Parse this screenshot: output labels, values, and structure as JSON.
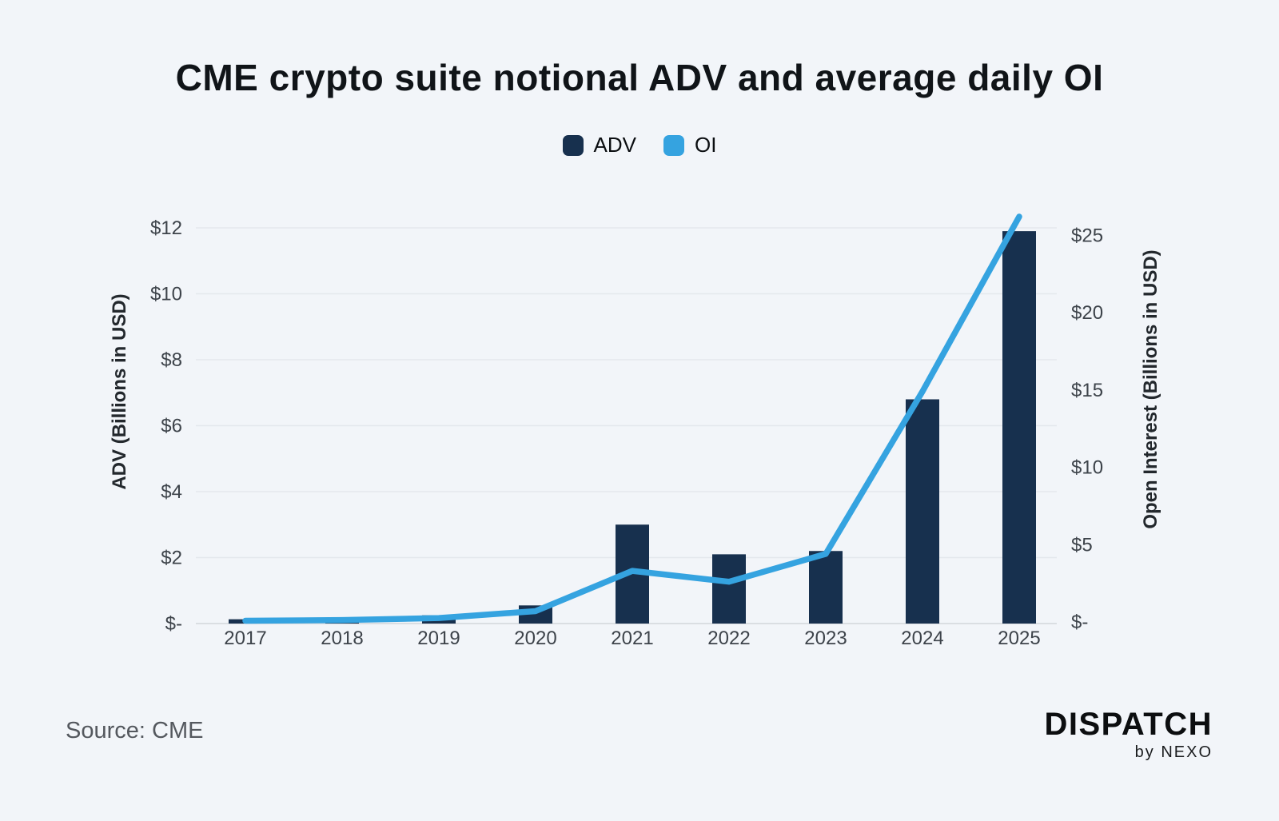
{
  "header": {
    "title": "CME crypto suite notional ADV and average daily OI"
  },
  "legend": {
    "items": [
      {
        "label": "ADV",
        "color": "#17304e"
      },
      {
        "label": "OI",
        "color": "#35a3e0"
      }
    ]
  },
  "chart_data": {
    "type": "bar",
    "subtype": "bar+line dual axis",
    "categories": [
      "2017",
      "2018",
      "2019",
      "2020",
      "2021",
      "2022",
      "2023",
      "2024",
      "2025"
    ],
    "series": [
      {
        "name": "ADV",
        "type": "bar",
        "axis": "left",
        "color": "#17304e",
        "values": [
          0.13,
          0.17,
          0.25,
          0.55,
          3.0,
          2.1,
          2.2,
          6.8,
          11.9
        ]
      },
      {
        "name": "OI",
        "type": "line",
        "axis": "right",
        "color": "#35a3e0",
        "values": [
          0.08,
          0.12,
          0.25,
          0.7,
          3.3,
          2.6,
          4.4,
          14.9,
          26.2
        ]
      }
    ],
    "left_axis": {
      "label": "ADV (Billions in USD)",
      "tick_values": [
        0,
        2,
        4,
        6,
        8,
        10,
        12
      ],
      "tick_labels": [
        "$-",
        "$2",
        "$4",
        "$6",
        "$8",
        "$10",
        "$12"
      ],
      "range": [
        0,
        12
      ]
    },
    "right_axis": {
      "label": "Open Interest (Billions in USD)",
      "tick_values": [
        0,
        5,
        10,
        15,
        20,
        25
      ],
      "tick_labels": [
        "$-",
        "$5",
        "$10",
        "$15",
        "$20",
        "$25"
      ],
      "range": [
        0,
        25.6
      ]
    },
    "grid": "horizontal",
    "legend_position": "top-center",
    "colors": {
      "background": "#f2f5f9",
      "gridline": "#e4e8ed",
      "baseline": "#d2d6db",
      "tick_text": "#3d434a"
    }
  },
  "footer": {
    "source": "Source: CME",
    "logo_main": "DISPATCH",
    "logo_sub": "by NEXO"
  }
}
